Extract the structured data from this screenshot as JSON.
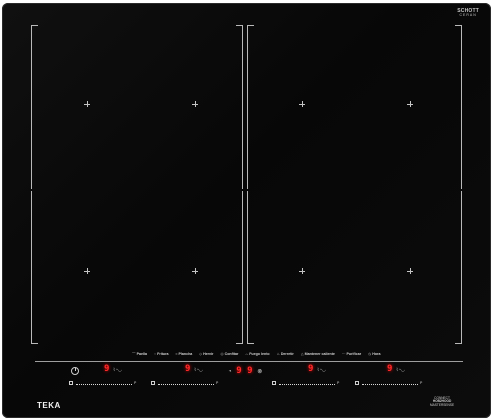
{
  "brand": "TEKA",
  "glass_maker": {
    "line1": "SCHOTT",
    "line2": "CERAN"
  },
  "functions": [
    {
      "icon": "ladle",
      "label": "Paella"
    },
    {
      "icon": "pan",
      "label": "Fritura"
    },
    {
      "icon": "grill",
      "label": "Plancha"
    },
    {
      "icon": "pot",
      "label": "Hervir"
    },
    {
      "icon": "warm",
      "label": "Confitar"
    },
    {
      "icon": "pot-lid",
      "label": "Fuego lento"
    },
    {
      "icon": "pressure",
      "label": "Derretir"
    },
    {
      "icon": "hold",
      "label": "Mantener caliente"
    },
    {
      "icon": "multi",
      "label": "Purificar"
    },
    {
      "icon": "clock",
      "label": "Hora"
    }
  ],
  "zones": [
    {
      "id": "front-left",
      "level": "9"
    },
    {
      "id": "center-left",
      "level": "9"
    },
    {
      "id": "center-right",
      "level": "9"
    },
    {
      "id": "right",
      "level": "9"
    }
  ],
  "timer": {
    "digits": "9 9",
    "left_icon": "◔",
    "right_icon": "⊗"
  },
  "slider_ticks": {
    "min": "",
    "max": "P"
  },
  "badge": {
    "line1": "CONNECT",
    "line2": "HOB2HOOD",
    "line3": "MASTERSENSE"
  },
  "colors": {
    "glass": "#0a0a0a",
    "display_red": "#ff2a2a",
    "print": "#c5c5c5"
  }
}
